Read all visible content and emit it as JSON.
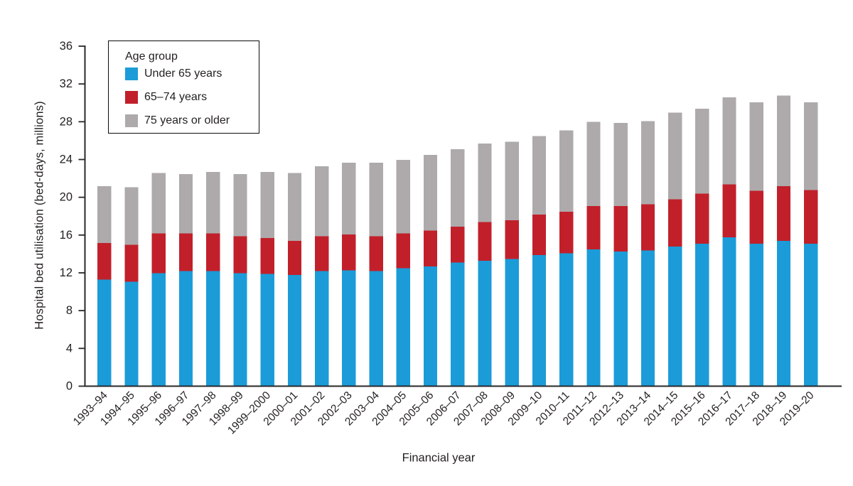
{
  "chart_data": {
    "type": "bar",
    "stacked": true,
    "xlabel": "Financial year",
    "ylabel": "Hospital bed utilisation (bed-days, millions)",
    "ylim": [
      0,
      36
    ],
    "yticks": [
      0,
      4,
      8,
      12,
      16,
      20,
      24,
      28,
      32,
      36
    ],
    "grid": false,
    "legend": {
      "title": "Age group",
      "position": "top-left-inside"
    },
    "categories": [
      "1993–94",
      "1994–95",
      "1995–96",
      "1996–97",
      "1997–98",
      "1998–99",
      "1999–2000",
      "2000–01",
      "2001–02",
      "2002–03",
      "2003–04",
      "2004–05",
      "2005–06",
      "2006–07",
      "2007–08",
      "2008–09",
      "2009–10",
      "2010–11",
      "2011–12",
      "2012–13",
      "2013–14",
      "2014–15",
      "2015–16",
      "2016–17",
      "2017–18",
      "2018–19",
      "2019–20"
    ],
    "series": [
      {
        "name": "Under 65 years",
        "color": "#1b9cd8",
        "values": [
          11.2,
          11.0,
          11.9,
          12.1,
          12.1,
          11.9,
          11.8,
          11.7,
          12.1,
          12.2,
          12.1,
          12.4,
          12.6,
          13.0,
          13.2,
          13.4,
          13.8,
          14.0,
          14.4,
          14.2,
          14.3,
          14.7,
          15.0,
          15.7,
          15.0,
          15.3,
          15.0
        ]
      },
      {
        "name": "65–74 years",
        "color": "#c1202b",
        "values": [
          3.9,
          3.9,
          4.2,
          4.0,
          4.0,
          3.9,
          3.8,
          3.6,
          3.7,
          3.8,
          3.7,
          3.7,
          3.8,
          3.8,
          4.1,
          4.1,
          4.3,
          4.4,
          4.6,
          4.8,
          4.9,
          5.0,
          5.3,
          5.6,
          5.6,
          5.8,
          5.7
        ]
      },
      {
        "name": "75 years or older",
        "color": "#aeaaab",
        "values": [
          6.0,
          6.1,
          6.4,
          6.3,
          6.5,
          6.6,
          7.0,
          7.2,
          7.4,
          7.6,
          7.8,
          7.8,
          8.0,
          8.2,
          8.3,
          8.3,
          8.3,
          8.6,
          8.9,
          8.8,
          8.8,
          9.2,
          9.0,
          9.2,
          9.4,
          9.6,
          9.3
        ]
      }
    ]
  }
}
